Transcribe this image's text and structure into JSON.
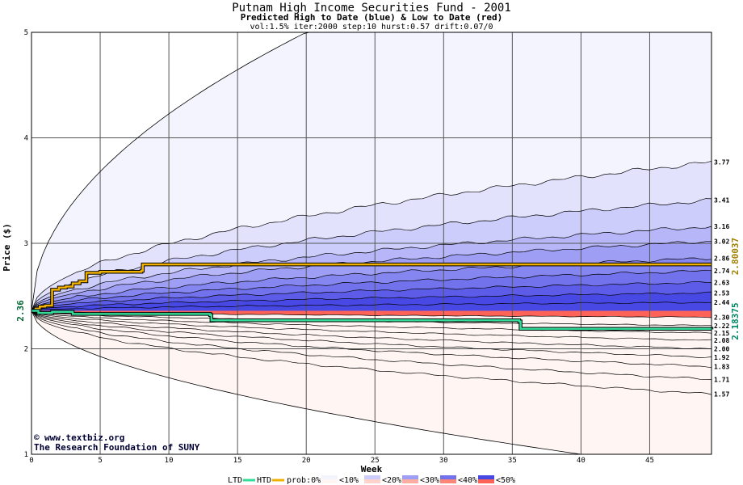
{
  "chart_data": {
    "type": "area",
    "title": "Putnam High Income Securities Fund - 2001",
    "subtitle": "Predicted High to Date (blue) &  Low to Date (red)",
    "params": "vol:1.5% iter:2000 step:10 hurst:0.57 drift:0.07/0",
    "xlabel": "Week",
    "ylabel": "Price ($)",
    "xlim": [
      0,
      49.5
    ],
    "ylim": [
      1,
      5
    ],
    "x_ticks": [
      0,
      5,
      10,
      15,
      20,
      25,
      30,
      35,
      40,
      45
    ],
    "y_ticks": [
      1,
      2,
      3,
      4,
      5
    ],
    "grid": true,
    "start_value": 2.36,
    "start_label": "2.36",
    "htd_final": 2.80037,
    "htd_final_label": "2.80037",
    "ltd_final": 2.18375,
    "ltd_final_label": "2.18375",
    "upper_bands": [
      3.77,
      3.41,
      3.16,
      3.02,
      2.86,
      2.74,
      2.63,
      2.53,
      2.44
    ],
    "lower_bands": [
      2.3,
      2.22,
      2.15,
      2.08,
      2.0,
      1.92,
      1.83,
      1.71,
      1.57
    ],
    "upper_band_labels": [
      "3.77",
      "3.41",
      "3.16",
      "3.02",
      "2.86",
      "2.74",
      "2.63",
      "2.53",
      "2.44"
    ],
    "lower_band_labels": [
      "2.30",
      "2.22",
      "2.15",
      "2.08",
      "2.00",
      "1.92",
      "1.83",
      "1.71",
      "1.57"
    ],
    "outer_upper_final": 5.0,
    "outer_upper_reach_week": 20,
    "outer_lower_final": 1.0,
    "outer_lower_reach_week": 40,
    "htd_series": {
      "name": "HTD",
      "x": [
        0,
        0.3,
        0.6,
        1.0,
        1.5,
        2.0,
        2.5,
        3.0,
        3.5,
        4.0,
        5.0,
        8.0,
        8.1,
        49.5
      ],
      "y": [
        2.36,
        2.38,
        2.4,
        2.41,
        2.56,
        2.58,
        2.59,
        2.62,
        2.64,
        2.72,
        2.73,
        2.74,
        2.8,
        2.80037
      ]
    },
    "ltd_series": {
      "name": "LTD",
      "x": [
        0,
        0.5,
        1.5,
        3.0,
        13.0,
        13.1,
        35.5,
        35.6,
        49.5
      ],
      "y": [
        2.36,
        2.34,
        2.35,
        2.33,
        2.32,
        2.27,
        2.26,
        2.19,
        2.18375
      ]
    },
    "legend": {
      "ltd": "LTD",
      "htd": "HTD",
      "prob": "prob:0%",
      "p10": "<10%",
      "p20": "<20%",
      "p30": "<30%",
      "p40": "<40%",
      "p50": "<50%"
    },
    "legend_placement": "bottom",
    "colors": {
      "htd": "#f0b000",
      "ltd": "#33dd99",
      "htd_label": "#a08000",
      "ltd_label": "#008866",
      "start_label": "#006633",
      "blue_bands": [
        "#f4f4ff",
        "#e2e2fd",
        "#cdcdfb",
        "#b6b6f8",
        "#9e9ef4",
        "#8686f0",
        "#7272ec",
        "#5c5ce8",
        "#4848e4"
      ],
      "red_bands": [
        "#fff5f3",
        "#ffe4e0",
        "#ffd2cc",
        "#ffbfb7",
        "#ffaca2",
        "#ff978c",
        "#ff8579",
        "#ff7468",
        "#ff6357"
      ]
    }
  },
  "credit": {
    "site": "www.textbiz.org",
    "org": "The Research Foundation of SUNY",
    "mark": "©"
  }
}
